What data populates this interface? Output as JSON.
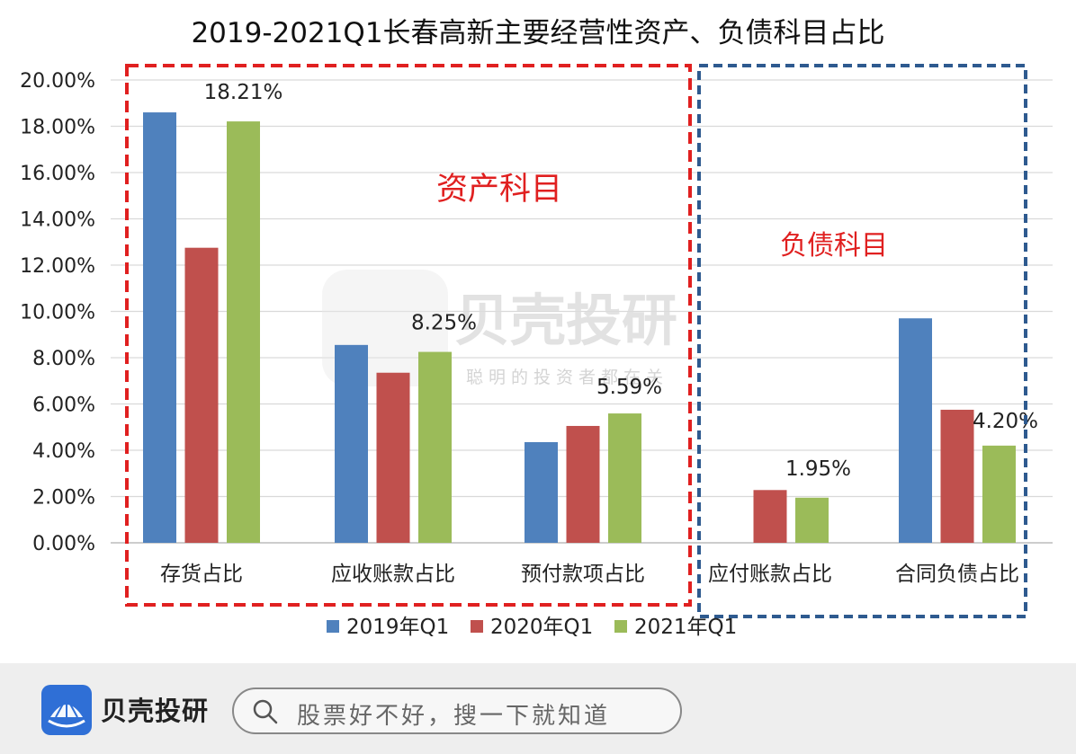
{
  "chart_data": {
    "type": "bar",
    "title": "2019-2021Q1长春高新主要经营性资产、负债科目占比",
    "categories": [
      "存货占比",
      "应收账款占比",
      "预付款项占比",
      "应付账款占比",
      "合同负债占比"
    ],
    "series": [
      {
        "name": "2019年Q1",
        "color": "#4f81bd",
        "values": [
          18.6,
          8.55,
          4.35,
          null,
          9.7
        ]
      },
      {
        "name": "2020年Q1",
        "color": "#c0504d",
        "values": [
          12.75,
          7.35,
          5.05,
          2.28,
          5.75
        ]
      },
      {
        "name": "2021年Q1",
        "color": "#9bbb59",
        "values": [
          18.21,
          8.25,
          5.59,
          1.95,
          4.2
        ]
      }
    ],
    "data_labels": [
      "18.21%",
      "8.25%",
      "5.59%",
      "1.95%",
      "4.20%"
    ],
    "yticks": [
      "0.00%",
      "2.00%",
      "4.00%",
      "6.00%",
      "8.00%",
      "10.00%",
      "12.00%",
      "14.00%",
      "16.00%",
      "18.00%",
      "20.00%"
    ],
    "ylim": [
      0,
      20
    ],
    "grid": true,
    "legend": "bottom",
    "groups": [
      {
        "label": "资产科目",
        "color": "#e02020",
        "categories": [
          "存货占比",
          "应收账款占比",
          "预付款项占比"
        ]
      },
      {
        "label": "负债科目",
        "color": "#2e5a8f",
        "categories": [
          "应付账款占比",
          "合同负债占比"
        ]
      }
    ]
  },
  "watermark": {
    "name": "贝壳投研",
    "slogan": "聪明的投资者都在关"
  },
  "footer": {
    "brand": "贝壳投研",
    "search_placeholder": "股票好不好，搜一下就知道"
  }
}
